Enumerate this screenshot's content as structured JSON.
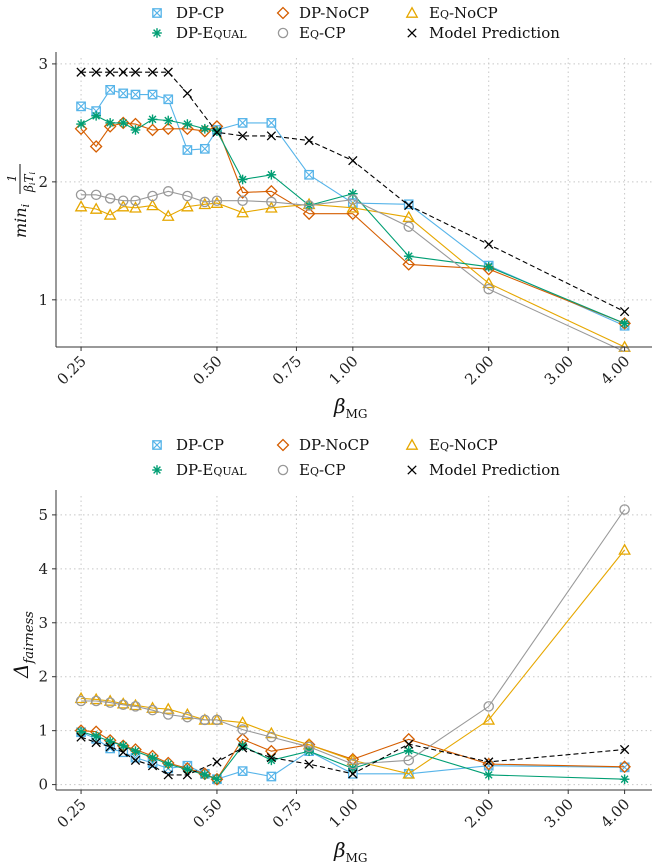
{
  "chart_data": [
    {
      "type": "line",
      "ylabel": "min_i 1/(β_i T_i)",
      "xlabel": "β_MG",
      "x_scale": "log",
      "xlim": [
        0.22,
        4.6
      ],
      "ylim": [
        0.6,
        3.05
      ],
      "x_ticks": [
        0.25,
        0.5,
        0.75,
        1.0,
        2.0,
        3.0,
        4.0
      ],
      "x_tick_labels": [
        "0.25",
        "0.50",
        "0.75",
        "1.00",
        "2.00",
        "3.00",
        "4.00"
      ],
      "y_ticks": [
        1,
        2,
        3
      ],
      "y_tick_labels": [
        "1",
        "2",
        "3"
      ],
      "grid": true,
      "legend_position": "top",
      "series": [
        {
          "name": "DP-CP",
          "color": "#56b4e9",
          "marker": "square-x",
          "dashed": false,
          "x": [
            0.25,
            0.27,
            0.29,
            0.31,
            0.33,
            0.36,
            0.39,
            0.43,
            0.47,
            0.5,
            0.57,
            0.66,
            0.8,
            1.0,
            1.33,
            2.0,
            4.0
          ],
          "y": [
            2.64,
            2.6,
            2.78,
            2.75,
            2.74,
            2.74,
            2.7,
            2.27,
            2.28,
            2.44,
            2.5,
            2.5,
            2.06,
            1.82,
            1.81,
            1.29,
            0.78
          ]
        },
        {
          "name": "DP-NoCP",
          "color": "#d55e00",
          "marker": "diamond",
          "dashed": false,
          "x": [
            0.25,
            0.27,
            0.29,
            0.31,
            0.33,
            0.36,
            0.39,
            0.43,
            0.47,
            0.5,
            0.57,
            0.66,
            0.8,
            1.0,
            1.33,
            2.0,
            4.0
          ],
          "y": [
            2.45,
            2.3,
            2.47,
            2.5,
            2.49,
            2.44,
            2.45,
            2.45,
            2.43,
            2.47,
            1.91,
            1.92,
            1.73,
            1.73,
            1.3,
            1.26,
            0.8
          ]
        },
        {
          "name": "Eq-NoCP",
          "color": "#e6a700",
          "marker": "triangle",
          "dashed": false,
          "x": [
            0.25,
            0.27,
            0.29,
            0.31,
            0.33,
            0.36,
            0.39,
            0.43,
            0.47,
            0.5,
            0.57,
            0.66,
            0.8,
            1.0,
            1.33,
            2.0,
            4.0
          ],
          "y": [
            1.79,
            1.77,
            1.72,
            1.79,
            1.78,
            1.8,
            1.71,
            1.79,
            1.81,
            1.82,
            1.74,
            1.78,
            1.81,
            1.78,
            1.7,
            1.14,
            0.6
          ]
        },
        {
          "name": "DP-Equal",
          "color": "#009e73",
          "marker": "asterisk",
          "dashed": false,
          "x": [
            0.25,
            0.27,
            0.29,
            0.31,
            0.33,
            0.36,
            0.39,
            0.43,
            0.47,
            0.5,
            0.57,
            0.66,
            0.8,
            1.0,
            1.33,
            2.0,
            4.0
          ],
          "y": [
            2.49,
            2.56,
            2.5,
            2.5,
            2.44,
            2.53,
            2.52,
            2.49,
            2.45,
            2.43,
            2.02,
            2.06,
            1.8,
            1.9,
            1.37,
            1.28,
            0.8
          ]
        },
        {
          "name": "Eq-CP",
          "color": "#999999",
          "marker": "circle",
          "dashed": false,
          "x": [
            0.25,
            0.27,
            0.29,
            0.31,
            0.33,
            0.36,
            0.39,
            0.43,
            0.47,
            0.5,
            0.57,
            0.66,
            0.8,
            1.0,
            1.33,
            2.0,
            4.0
          ],
          "y": [
            1.89,
            1.89,
            1.86,
            1.84,
            1.84,
            1.88,
            1.92,
            1.88,
            1.83,
            1.84,
            1.84,
            1.83,
            1.8,
            1.85,
            1.62,
            1.09,
            0.56
          ]
        },
        {
          "name": "Model Prediction",
          "color": "#000000",
          "marker": "x",
          "dashed": true,
          "x": [
            0.25,
            0.27,
            0.29,
            0.31,
            0.33,
            0.36,
            0.39,
            0.43,
            0.5,
            0.57,
            0.66,
            0.8,
            1.0,
            1.33,
            2.0,
            4.0
          ],
          "y": [
            2.93,
            2.93,
            2.93,
            2.93,
            2.93,
            2.93,
            2.93,
            2.75,
            2.42,
            2.39,
            2.39,
            2.35,
            2.18,
            1.8,
            1.47,
            0.9
          ]
        }
      ]
    },
    {
      "type": "line",
      "ylabel": "Δ_fairness",
      "xlabel": "β_MG",
      "x_scale": "log",
      "xlim": [
        0.22,
        4.6
      ],
      "ylim": [
        -0.1,
        5.35
      ],
      "x_ticks": [
        0.25,
        0.5,
        0.75,
        1.0,
        2.0,
        3.0,
        4.0
      ],
      "x_tick_labels": [
        "0.25",
        "0.50",
        "0.75",
        "1.00",
        "2.00",
        "3.00",
        "4.00"
      ],
      "y_ticks": [
        0,
        1,
        2,
        3,
        4,
        5
      ],
      "y_tick_labels": [
        "0",
        "1",
        "2",
        "3",
        "4",
        "5"
      ],
      "grid": true,
      "legend_position": "top",
      "series": [
        {
          "name": "DP-CP",
          "color": "#56b4e9",
          "marker": "square-x",
          "dashed": false,
          "x": [
            0.25,
            0.27,
            0.29,
            0.31,
            0.33,
            0.36,
            0.39,
            0.43,
            0.47,
            0.5,
            0.57,
            0.66,
            0.8,
            1.0,
            1.33,
            2.0,
            4.0
          ],
          "y": [
            0.97,
            0.85,
            0.67,
            0.6,
            0.5,
            0.4,
            0.3,
            0.35,
            0.2,
            0.1,
            0.25,
            0.15,
            0.62,
            0.2,
            0.2,
            0.35,
            0.32
          ]
        },
        {
          "name": "DP-NoCP",
          "color": "#d55e00",
          "marker": "diamond",
          "dashed": false,
          "x": [
            0.25,
            0.27,
            0.29,
            0.31,
            0.33,
            0.36,
            0.39,
            0.43,
            0.47,
            0.5,
            0.57,
            0.66,
            0.8,
            1.0,
            1.33,
            2.0,
            4.0
          ],
          "y": [
            1.0,
            0.98,
            0.82,
            0.72,
            0.65,
            0.53,
            0.4,
            0.3,
            0.2,
            0.1,
            0.84,
            0.62,
            0.74,
            0.47,
            0.84,
            0.38,
            0.33
          ]
        },
        {
          "name": "Eq-NoCP",
          "color": "#e6a700",
          "marker": "triangle",
          "dashed": false,
          "x": [
            0.25,
            0.27,
            0.29,
            0.31,
            0.33,
            0.36,
            0.39,
            0.43,
            0.47,
            0.5,
            0.57,
            0.66,
            0.8,
            1.0,
            1.33,
            2.0,
            4.0
          ],
          "y": [
            1.6,
            1.58,
            1.55,
            1.5,
            1.47,
            1.42,
            1.4,
            1.3,
            1.2,
            1.2,
            1.15,
            0.95,
            0.74,
            0.45,
            0.2,
            1.2,
            4.35
          ]
        },
        {
          "name": "DP-Equal",
          "color": "#009e73",
          "marker": "asterisk",
          "dashed": false,
          "x": [
            0.25,
            0.27,
            0.29,
            0.31,
            0.33,
            0.36,
            0.39,
            0.43,
            0.47,
            0.5,
            0.57,
            0.66,
            0.8,
            1.0,
            1.33,
            2.0,
            4.0
          ],
          "y": [
            0.98,
            0.9,
            0.8,
            0.72,
            0.62,
            0.5,
            0.38,
            0.28,
            0.18,
            0.1,
            0.72,
            0.45,
            0.62,
            0.3,
            0.63,
            0.18,
            0.1
          ]
        },
        {
          "name": "Eq-CP",
          "color": "#999999",
          "marker": "circle",
          "dashed": false,
          "x": [
            0.25,
            0.27,
            0.29,
            0.31,
            0.33,
            0.36,
            0.39,
            0.43,
            0.47,
            0.5,
            0.57,
            0.66,
            0.8,
            1.0,
            1.33,
            2.0,
            4.0
          ],
          "y": [
            1.55,
            1.55,
            1.52,
            1.48,
            1.45,
            1.38,
            1.3,
            1.25,
            1.2,
            1.2,
            1.02,
            0.88,
            0.7,
            0.38,
            0.45,
            1.45,
            5.1
          ]
        },
        {
          "name": "Model Prediction",
          "color": "#000000",
          "marker": "x",
          "dashed": true,
          "x": [
            0.25,
            0.27,
            0.29,
            0.31,
            0.33,
            0.36,
            0.39,
            0.43,
            0.5,
            0.57,
            0.66,
            0.8,
            1.0,
            1.33,
            2.0,
            4.0
          ],
          "y": [
            0.88,
            0.78,
            0.7,
            0.6,
            0.45,
            0.35,
            0.18,
            0.18,
            0.42,
            0.68,
            0.5,
            0.38,
            0.2,
            0.75,
            0.42,
            0.65
          ]
        }
      ]
    }
  ]
}
